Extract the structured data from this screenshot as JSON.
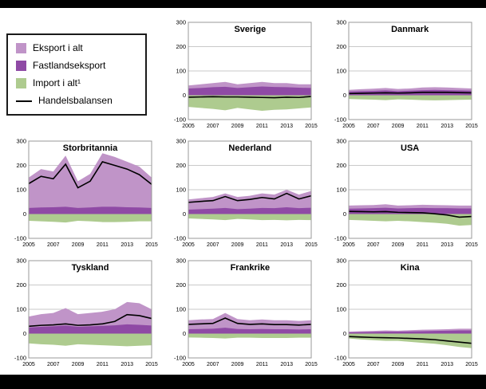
{
  "colors": {
    "eksport": "#c094c8",
    "fastlandseksport": "#8f4aa5",
    "import": "#aecb8f",
    "handelsbalansen": "#000000",
    "gridline": "#c9c9c9",
    "plot_border": "#999999"
  },
  "legend": {
    "items": [
      {
        "key": "eksport",
        "label": "Eksport i alt",
        "type": "area"
      },
      {
        "key": "fastlandseksport",
        "label": "Fastlandseksport",
        "type": "area"
      },
      {
        "key": "import",
        "label": "Import i alt¹",
        "type": "area"
      },
      {
        "key": "handelsbalansen",
        "label": "Handelsbalansen",
        "type": "line"
      }
    ]
  },
  "axis": {
    "ylim": [
      -100,
      300
    ],
    "yticks": [
      300,
      200,
      100,
      0,
      -100
    ],
    "xticks": [
      2005,
      2007,
      2009,
      2011,
      2013,
      2015
    ],
    "years": [
      2005,
      2006,
      2007,
      2008,
      2009,
      2010,
      2011,
      2012,
      2013,
      2014,
      2015
    ],
    "grid": true
  },
  "chart_data": [
    {
      "type": "area",
      "country": "Sverige",
      "series": {
        "eksport": [
          40,
          45,
          50,
          55,
          45,
          50,
          55,
          50,
          50,
          45,
          45
        ],
        "fastlandseksport": [
          28,
          30,
          33,
          35,
          30,
          33,
          36,
          34,
          33,
          31,
          30
        ],
        "import": [
          -48,
          -52,
          -56,
          -62,
          -52,
          -58,
          -64,
          -60,
          -58,
          -54,
          -50
        ],
        "handelsbalansen": [
          -8,
          -7,
          -6,
          -7,
          -7,
          -8,
          -9,
          -10,
          -8,
          -9,
          -5
        ]
      }
    },
    {
      "type": "area",
      "country": "Danmark",
      "series": {
        "eksport": [
          22,
          25,
          27,
          30,
          26,
          28,
          32,
          33,
          32,
          30,
          28
        ],
        "fastlandseksport": [
          15,
          17,
          18,
          20,
          17,
          19,
          21,
          22,
          21,
          20,
          19
        ],
        "import": [
          -15,
          -17,
          -18,
          -20,
          -17,
          -18,
          -20,
          -21,
          -20,
          -19,
          -18
        ],
        "handelsbalansen": [
          7,
          8,
          9,
          10,
          9,
          10,
          12,
          12,
          12,
          11,
          10
        ]
      }
    },
    {
      "type": "area",
      "country": "Storbritannia",
      "series": {
        "eksport": [
          150,
          185,
          175,
          240,
          135,
          165,
          250,
          235,
          215,
          195,
          150
        ],
        "fastlandseksport": [
          25,
          27,
          28,
          30,
          25,
          27,
          30,
          30,
          28,
          27,
          25
        ],
        "import": [
          -28,
          -30,
          -32,
          -35,
          -28,
          -30,
          -33,
          -33,
          -32,
          -30,
          -30
        ],
        "handelsbalansen": [
          125,
          155,
          145,
          205,
          108,
          135,
          215,
          200,
          185,
          162,
          122
        ]
      }
    },
    {
      "type": "area",
      "country": "Nederland",
      "series": {
        "eksport": [
          60,
          65,
          70,
          85,
          70,
          75,
          85,
          80,
          100,
          80,
          95
        ],
        "fastlandseksport": [
          18,
          20,
          22,
          25,
          20,
          22,
          25,
          24,
          28,
          24,
          26
        ],
        "import": [
          -18,
          -20,
          -22,
          -25,
          -20,
          -22,
          -25,
          -24,
          -26,
          -24,
          -25
        ],
        "handelsbalansen": [
          48,
          52,
          55,
          72,
          55,
          60,
          68,
          62,
          85,
          62,
          75
        ]
      }
    },
    {
      "type": "area",
      "country": "USA",
      "series": {
        "eksport": [
          35,
          36,
          37,
          40,
          35,
          36,
          38,
          37,
          36,
          35,
          35
        ],
        "fastlandseksport": [
          22,
          23,
          24,
          26,
          23,
          24,
          25,
          24,
          24,
          23,
          23
        ],
        "import": [
          -24,
          -26,
          -28,
          -30,
          -28,
          -30,
          -33,
          -36,
          -40,
          -48,
          -45
        ],
        "handelsbalansen": [
          11,
          10,
          9,
          10,
          7,
          6,
          5,
          1,
          -4,
          -13,
          -10
        ]
      }
    },
    {
      "type": "area",
      "country": "Tyskland",
      "series": {
        "eksport": [
          70,
          80,
          85,
          105,
          80,
          85,
          90,
          100,
          130,
          125,
          100
        ],
        "fastlandseksport": [
          25,
          28,
          30,
          33,
          28,
          30,
          32,
          34,
          38,
          36,
          33
        ],
        "import": [
          -40,
          -44,
          -46,
          -50,
          -44,
          -46,
          -48,
          -50,
          -52,
          -50,
          -48
        ],
        "handelsbalansen": [
          30,
          34,
          36,
          40,
          34,
          36,
          40,
          50,
          78,
          74,
          62
        ]
      }
    },
    {
      "type": "area",
      "country": "Frankrike",
      "series": {
        "eksport": [
          55,
          58,
          60,
          85,
          60,
          55,
          58,
          55,
          55,
          52,
          55
        ],
        "fastlandseksport": [
          18,
          19,
          20,
          24,
          19,
          18,
          19,
          18,
          18,
          17,
          18
        ],
        "import": [
          -16,
          -17,
          -18,
          -20,
          -17,
          -17,
          -18,
          -18,
          -18,
          -17,
          -17
        ],
        "handelsbalansen": [
          38,
          40,
          42,
          64,
          42,
          38,
          40,
          37,
          37,
          35,
          38
        ]
      }
    },
    {
      "type": "area",
      "country": "Kina",
      "series": {
        "eksport": [
          8,
          10,
          11,
          13,
          12,
          14,
          16,
          17,
          18,
          20,
          20
        ],
        "fastlandseksport": [
          5,
          6,
          7,
          8,
          8,
          9,
          10,
          11,
          12,
          13,
          13
        ],
        "import": [
          -20,
          -24,
          -27,
          -30,
          -30,
          -34,
          -38,
          -42,
          -48,
          -55,
          -60
        ],
        "handelsbalansen": [
          -12,
          -14,
          -16,
          -17,
          -18,
          -20,
          -22,
          -25,
          -30,
          -35,
          -40
        ]
      }
    }
  ]
}
